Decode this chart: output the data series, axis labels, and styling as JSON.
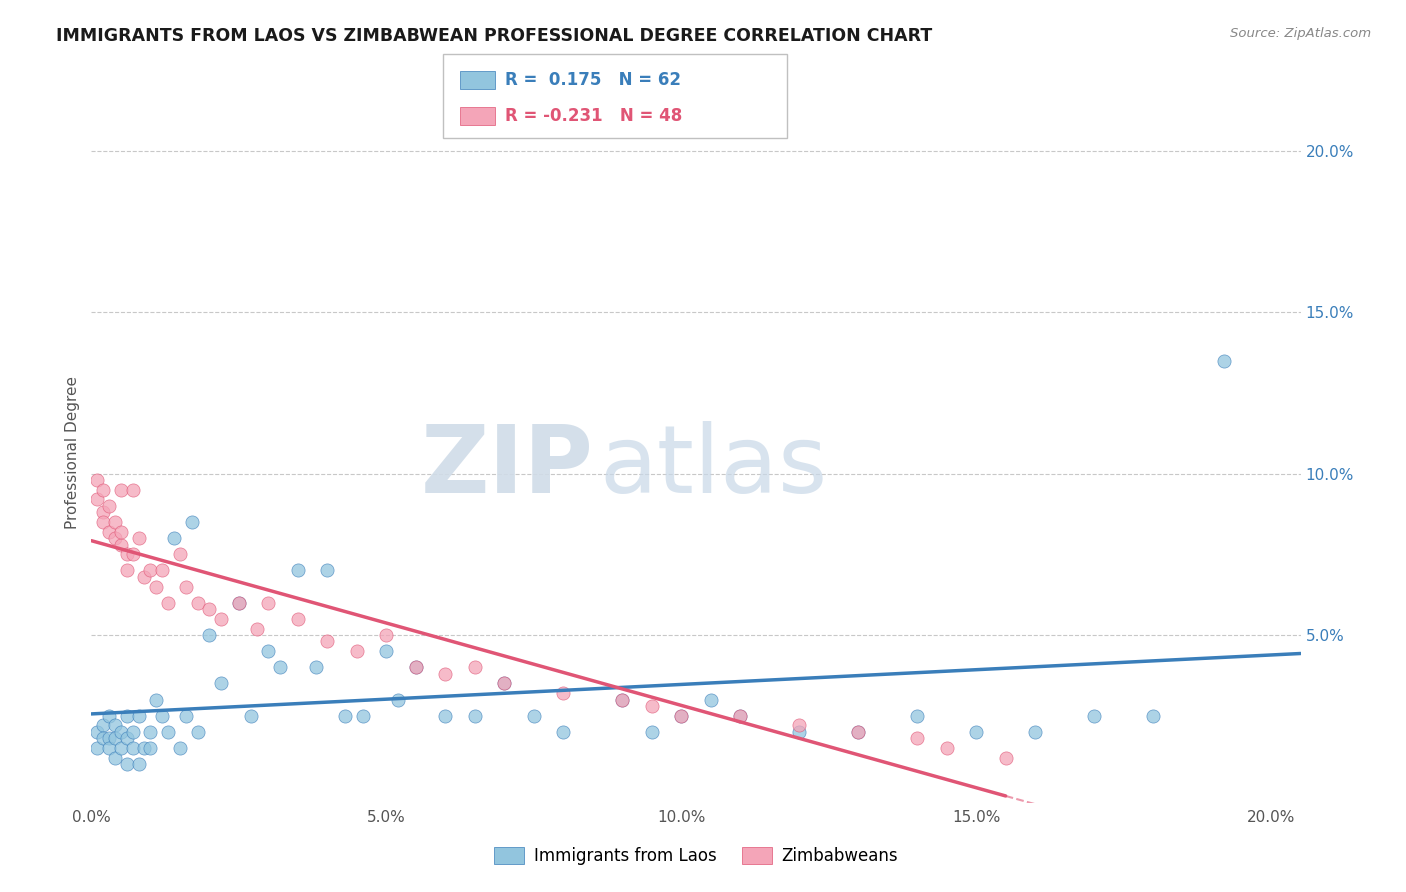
{
  "title": "IMMIGRANTS FROM LAOS VS ZIMBABWEAN PROFESSIONAL DEGREE CORRELATION CHART",
  "source_text": "Source: ZipAtlas.com",
  "ylabel": "Professional Degree",
  "watermark_zip": "ZIP",
  "watermark_atlas": "atlas",
  "xlim": [
    0.0,
    0.205
  ],
  "ylim": [
    -0.002,
    0.215
  ],
  "xtick_labels": [
    "0.0%",
    "5.0%",
    "10.0%",
    "15.0%",
    "20.0%"
  ],
  "xtick_vals": [
    0.0,
    0.05,
    0.1,
    0.15,
    0.2
  ],
  "ytick_labels": [
    "5.0%",
    "10.0%",
    "15.0%",
    "20.0%"
  ],
  "ytick_vals_right": [
    0.05,
    0.1,
    0.15,
    0.2
  ],
  "color_blue": "#92c5de",
  "color_pink": "#f4a5b8",
  "color_blue_line": "#3a7eba",
  "color_pink_line": "#e05575",
  "title_color": "#1a1a1a",
  "background_color": "#ffffff",
  "grid_color": "#c8c8c8",
  "laos_x": [
    0.001,
    0.001,
    0.002,
    0.002,
    0.003,
    0.003,
    0.003,
    0.004,
    0.004,
    0.004,
    0.005,
    0.005,
    0.006,
    0.006,
    0.006,
    0.007,
    0.007,
    0.008,
    0.008,
    0.009,
    0.01,
    0.01,
    0.011,
    0.012,
    0.013,
    0.014,
    0.015,
    0.016,
    0.017,
    0.018,
    0.02,
    0.022,
    0.025,
    0.027,
    0.03,
    0.032,
    0.035,
    0.038,
    0.04,
    0.043,
    0.046,
    0.05,
    0.052,
    0.055,
    0.06,
    0.065,
    0.07,
    0.075,
    0.08,
    0.09,
    0.095,
    0.1,
    0.105,
    0.11,
    0.12,
    0.13,
    0.14,
    0.15,
    0.16,
    0.17,
    0.18,
    0.192
  ],
  "laos_y": [
    0.02,
    0.015,
    0.022,
    0.018,
    0.025,
    0.018,
    0.015,
    0.022,
    0.018,
    0.012,
    0.02,
    0.015,
    0.025,
    0.018,
    0.01,
    0.02,
    0.015,
    0.025,
    0.01,
    0.015,
    0.02,
    0.015,
    0.03,
    0.025,
    0.02,
    0.08,
    0.015,
    0.025,
    0.085,
    0.02,
    0.05,
    0.035,
    0.06,
    0.025,
    0.045,
    0.04,
    0.07,
    0.04,
    0.07,
    0.025,
    0.025,
    0.045,
    0.03,
    0.04,
    0.025,
    0.025,
    0.035,
    0.025,
    0.02,
    0.03,
    0.02,
    0.025,
    0.03,
    0.025,
    0.02,
    0.02,
    0.025,
    0.02,
    0.02,
    0.025,
    0.025,
    0.135
  ],
  "zim_x": [
    0.001,
    0.001,
    0.002,
    0.002,
    0.002,
    0.003,
    0.003,
    0.004,
    0.004,
    0.005,
    0.005,
    0.005,
    0.006,
    0.006,
    0.007,
    0.007,
    0.008,
    0.009,
    0.01,
    0.011,
    0.012,
    0.013,
    0.015,
    0.016,
    0.018,
    0.02,
    0.022,
    0.025,
    0.028,
    0.03,
    0.035,
    0.04,
    0.045,
    0.05,
    0.055,
    0.06,
    0.065,
    0.07,
    0.08,
    0.09,
    0.095,
    0.1,
    0.11,
    0.12,
    0.13,
    0.14,
    0.145,
    0.155
  ],
  "zim_y": [
    0.098,
    0.092,
    0.095,
    0.088,
    0.085,
    0.09,
    0.082,
    0.08,
    0.085,
    0.078,
    0.095,
    0.082,
    0.075,
    0.07,
    0.095,
    0.075,
    0.08,
    0.068,
    0.07,
    0.065,
    0.07,
    0.06,
    0.075,
    0.065,
    0.06,
    0.058,
    0.055,
    0.06,
    0.052,
    0.06,
    0.055,
    0.048,
    0.045,
    0.05,
    0.04,
    0.038,
    0.04,
    0.035,
    0.032,
    0.03,
    0.028,
    0.025,
    0.025,
    0.022,
    0.02,
    0.018,
    0.015,
    0.012
  ]
}
